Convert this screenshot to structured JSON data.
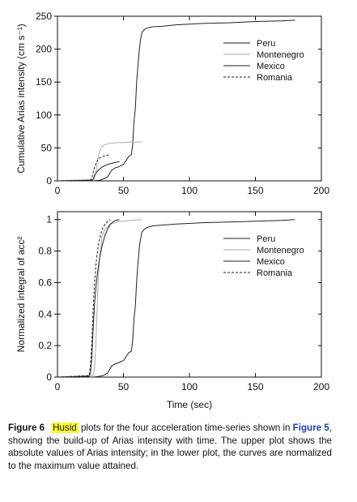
{
  "chart_data": [
    {
      "type": "line",
      "ylabel": "Cumulative Arias intensity (cm s⁻¹)",
      "xlabel": "",
      "xlim": [
        0,
        200
      ],
      "ylim": [
        0,
        250
      ],
      "xticks": [
        "0",
        "50",
        "100",
        "150",
        "200"
      ],
      "yticks": [
        "0",
        "50",
        "100",
        "150",
        "200",
        "250"
      ],
      "legend_position": "top-right",
      "series": [
        {
          "name": "Peru",
          "color": "#222222",
          "dash": "solid",
          "x": [
            0,
            27,
            32,
            35,
            38,
            41,
            44,
            46,
            50,
            54,
            56,
            57,
            58,
            59,
            60,
            61,
            62,
            63,
            64,
            66,
            68,
            72,
            80,
            90,
            110,
            130,
            150,
            170,
            180
          ],
          "y": [
            0,
            0,
            1,
            3,
            6,
            16,
            20,
            21,
            25,
            37,
            40,
            55,
            90,
            110,
            150,
            175,
            200,
            215,
            225,
            230,
            232,
            234,
            235,
            237,
            239,
            240,
            242,
            243,
            244
          ]
        },
        {
          "name": "Montenegro",
          "color": "#aaaaaa",
          "dash": "solid",
          "x": [
            0,
            28,
            29,
            30,
            31,
            32,
            33,
            34,
            36,
            40,
            45,
            50,
            55,
            64
          ],
          "y": [
            0,
            2,
            12,
            25,
            38,
            45,
            50,
            53,
            55,
            57,
            58,
            58,
            59,
            59
          ]
        },
        {
          "name": "Mexico",
          "color": "#222222",
          "dash": "solid",
          "x": [
            0,
            26,
            27,
            28,
            30,
            32,
            34,
            36,
            38,
            40,
            42,
            44,
            46,
            47
          ],
          "y": [
            0,
            1,
            3,
            8,
            14,
            18,
            21,
            23,
            25,
            26,
            27,
            28,
            29,
            29
          ]
        },
        {
          "name": "Romania",
          "color": "#222222",
          "dash": "dashed",
          "x": [
            0,
            25,
            26,
            27,
            28,
            29,
            30,
            31,
            32,
            34,
            36,
            38,
            40
          ],
          "y": [
            0,
            1,
            4,
            12,
            20,
            26,
            30,
            33,
            35,
            37,
            38,
            39,
            40
          ]
        }
      ]
    },
    {
      "type": "line",
      "ylabel": "Normalized integral of acc²",
      "xlabel": "Time (sec)",
      "xlim": [
        0,
        200
      ],
      "ylim": [
        0,
        1.05
      ],
      "xticks": [
        "0",
        "50",
        "100",
        "150",
        "200"
      ],
      "yticks": [
        "0",
        "0.2",
        "0.4",
        "0.6",
        "0.8",
        "1"
      ],
      "legend_position": "top-right",
      "series": [
        {
          "name": "Peru",
          "color": "#222222",
          "dash": "solid",
          "x": [
            0,
            27,
            32,
            35,
            38,
            41,
            44,
            46,
            50,
            54,
            56,
            57,
            58,
            59,
            60,
            61,
            62,
            63,
            64,
            66,
            68,
            72,
            80,
            90,
            110,
            130,
            150,
            170,
            180
          ],
          "y": [
            0,
            0,
            0.005,
            0.012,
            0.025,
            0.07,
            0.085,
            0.09,
            0.105,
            0.155,
            0.165,
            0.23,
            0.37,
            0.45,
            0.61,
            0.72,
            0.82,
            0.88,
            0.92,
            0.94,
            0.95,
            0.96,
            0.965,
            0.972,
            0.98,
            0.984,
            0.99,
            0.995,
            1.0
          ]
        },
        {
          "name": "Montenegro",
          "color": "#aaaaaa",
          "dash": "solid",
          "x": [
            0,
            27,
            28,
            29,
            30,
            31,
            32,
            33,
            34,
            36,
            40,
            45,
            50,
            55,
            64
          ],
          "y": [
            0,
            0.01,
            0.05,
            0.2,
            0.42,
            0.64,
            0.76,
            0.84,
            0.9,
            0.94,
            0.97,
            0.985,
            0.99,
            0.995,
            1.0
          ]
        },
        {
          "name": "Mexico",
          "color": "#222222",
          "dash": "solid",
          "x": [
            0,
            24,
            25,
            26,
            27,
            28,
            29,
            30,
            31,
            32,
            34,
            36,
            38,
            40,
            42,
            44,
            47
          ],
          "y": [
            0,
            0.005,
            0.03,
            0.12,
            0.3,
            0.45,
            0.56,
            0.64,
            0.7,
            0.76,
            0.84,
            0.9,
            0.94,
            0.97,
            0.985,
            0.995,
            1.0
          ]
        },
        {
          "name": "Romania",
          "color": "#222222",
          "dash": "dashed",
          "x": [
            0,
            24,
            25,
            26,
            27,
            28,
            29,
            30,
            31,
            32,
            34,
            36,
            38,
            40
          ],
          "y": [
            0,
            0.01,
            0.08,
            0.22,
            0.42,
            0.58,
            0.7,
            0.78,
            0.84,
            0.88,
            0.94,
            0.97,
            0.99,
            1.0
          ]
        }
      ]
    }
  ],
  "caption": {
    "label": "Figure 6",
    "highlight": "Husid",
    "text1": " plots for the four acceleration time-series shown in ",
    "ref": "Figure 5",
    "text2": ", showing the build-up of Arias intensity with time. The upper plot shows the absolute values of Arias intensity; in the lower plot, the curves are normalized to the maximum value attained."
  }
}
